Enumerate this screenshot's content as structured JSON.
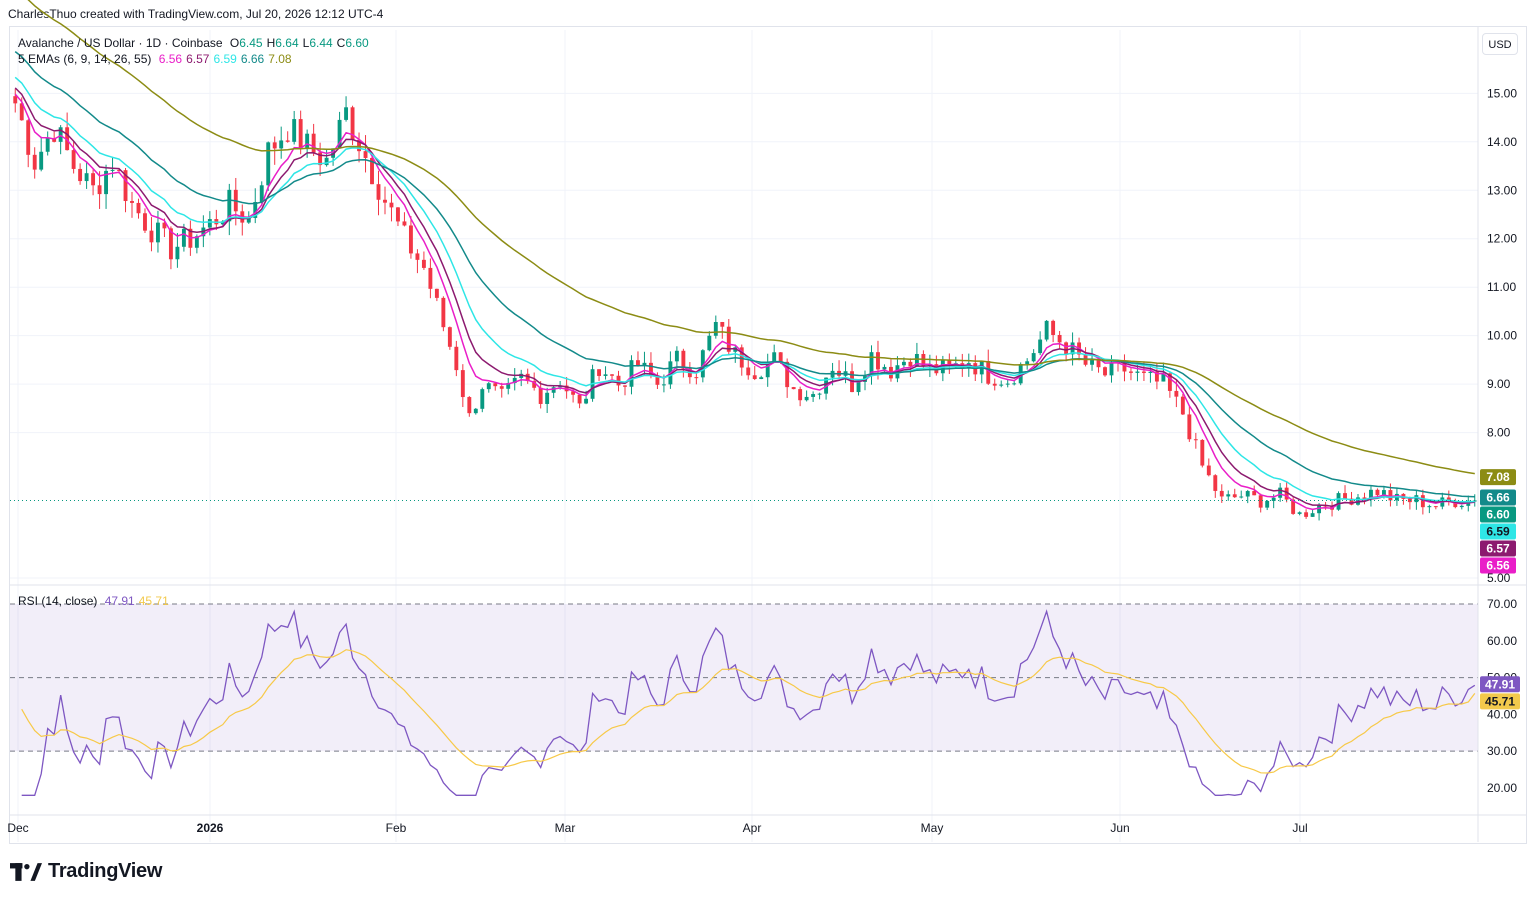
{
  "header": {
    "title": "CharlesThuo created with TradingView.com, Jul 20, 2026 12:12 UTC-4"
  },
  "legend": {
    "symbol": "Avalanche / US Dollar · 1D · Coinbase",
    "ohlc": [
      {
        "k": "O",
        "v": "6.45"
      },
      {
        "k": "H",
        "v": "6.64"
      },
      {
        "k": "L",
        "v": "6.44"
      },
      {
        "k": "C",
        "v": "6.60"
      }
    ],
    "ema_label": "5 EMAs (6, 9, 14, 26, 55)",
    "ema_values": [
      {
        "v": "6.56",
        "color": "#e91ec8"
      },
      {
        "v": "6.57",
        "color": "#8c1a6f"
      },
      {
        "v": "6.59",
        "color": "#2ee6e6"
      },
      {
        "v": "6.66",
        "color": "#138a8a"
      },
      {
        "v": "7.08",
        "color": "#8c8c14"
      }
    ],
    "rsi_label": "RSI (14, close)",
    "rsi_values": [
      {
        "v": "47.91",
        "color": "#7e57c2"
      },
      {
        "v": "45.71",
        "color": "#f2c94c"
      }
    ]
  },
  "usd_button": "USD",
  "footer": {
    "logo_text": "TradingView"
  },
  "colors": {
    "up": "#089981",
    "down": "#f23645",
    "rsi_line": "#7e57c2",
    "rsi_ma": "#f7c948"
  },
  "chart_data": {
    "type": "line",
    "title": "Avalanche / US Dollar · 1D · Coinbase",
    "x_axis_labels": [
      "Dec",
      "2026",
      "Feb",
      "Mar",
      "Apr",
      "May",
      "Jun",
      "Jul"
    ],
    "price_axis_ticks": [
      "15.00",
      "14.00",
      "13.00",
      "12.00",
      "11.00",
      "10.00",
      "9.00",
      "8.00",
      "5.00"
    ],
    "ylim_price": [
      5,
      16.1
    ],
    "last_close": 6.6,
    "price_path": [
      [
        0,
        14.8
      ],
      [
        3,
        13.6
      ],
      [
        6,
        14.3
      ],
      [
        9,
        13.5
      ],
      [
        12,
        13.0
      ],
      [
        15,
        13.6
      ],
      [
        18,
        12.7
      ],
      [
        21,
        12.2
      ],
      [
        24,
        11.8
      ],
      [
        27,
        12.0
      ],
      [
        30,
        12.3
      ],
      [
        33,
        12.7
      ],
      [
        36,
        12.4
      ],
      [
        39,
        13.8
      ],
      [
        42,
        14.3
      ],
      [
        45,
        13.9
      ],
      [
        48,
        13.6
      ],
      [
        51,
        14.6
      ],
      [
        54,
        13.7
      ],
      [
        57,
        12.8
      ],
      [
        60,
        12.0
      ],
      [
        63,
        11.4
      ],
      [
        66,
        10.2
      ],
      [
        68,
        9.4
      ],
      [
        70,
        8.3
      ],
      [
        72,
        9.0
      ],
      [
        75,
        8.7
      ],
      [
        78,
        9.1
      ],
      [
        81,
        8.8
      ],
      [
        84,
        9.1
      ],
      [
        87,
        8.5
      ],
      [
        90,
        9.4
      ],
      [
        93,
        9.0
      ],
      [
        96,
        9.4
      ],
      [
        99,
        9.0
      ],
      [
        102,
        9.5
      ],
      [
        105,
        9.3
      ],
      [
        108,
        10.2
      ],
      [
        111,
        9.6
      ],
      [
        114,
        9.3
      ],
      [
        117,
        9.5
      ],
      [
        120,
        8.9
      ],
      [
        123,
        8.8
      ],
      [
        126,
        9.4
      ],
      [
        129,
        9.0
      ],
      [
        132,
        9.6
      ],
      [
        135,
        9.3
      ],
      [
        138,
        9.6
      ],
      [
        141,
        9.3
      ],
      [
        144,
        9.3
      ],
      [
        147,
        9.5
      ],
      [
        150,
        9.2
      ],
      [
        153,
        9.1
      ],
      [
        156,
        9.5
      ],
      [
        159,
        10.1
      ],
      [
        162,
        9.8
      ],
      [
        165,
        9.4
      ],
      [
        168,
        9.2
      ],
      [
        171,
        9.3
      ],
      [
        174,
        9.1
      ],
      [
        177,
        9.0
      ],
      [
        180,
        8.4
      ],
      [
        183,
        7.3
      ],
      [
        186,
        6.6
      ],
      [
        189,
        6.7
      ],
      [
        192,
        6.6
      ],
      [
        195,
        6.7
      ],
      [
        198,
        6.3
      ],
      [
        201,
        6.5
      ],
      [
        204,
        6.6
      ],
      [
        207,
        6.7
      ],
      [
        210,
        6.8
      ],
      [
        213,
        6.6
      ],
      [
        216,
        6.6
      ],
      [
        219,
        6.5
      ],
      [
        222,
        6.6
      ],
      [
        225,
        6.6
      ]
    ],
    "ema_series": [
      {
        "name": "6.56",
        "length": 6,
        "color": "#e91ec8"
      },
      {
        "name": "6.57",
        "length": 9,
        "color": "#8c1a6f"
      },
      {
        "name": "6.59",
        "length": 14,
        "color": "#2ee6e6"
      },
      {
        "name": "6.66",
        "length": 26,
        "color": "#138a8a"
      },
      {
        "name": "7.08",
        "length": 55,
        "color": "#8c8c14"
      }
    ],
    "price_axis_tags": [
      {
        "v": "7.08",
        "price": 7.08,
        "color": "#8c8c14",
        "text": "#ffffff"
      },
      {
        "v": "6.66",
        "price": 6.66,
        "color": "#138a8a",
        "text": "#ffffff"
      },
      {
        "v": "6.60",
        "price": 6.6,
        "color": "#089981",
        "text": "#ffffff"
      },
      {
        "v": "6.59",
        "price": 6.59,
        "color": "#2ee6e6",
        "text": "#131722"
      },
      {
        "v": "6.57",
        "price": 6.57,
        "color": "#8c1a6f",
        "text": "#ffffff"
      },
      {
        "v": "6.56",
        "price": 6.56,
        "color": "#e91ec8",
        "text": "#ffffff"
      }
    ],
    "rsi": {
      "ticks": [
        "70.00",
        "60.00",
        "50.00",
        "40.00",
        "30.00",
        "20.00"
      ],
      "ylim": [
        14,
        70
      ],
      "bands": [
        30,
        50,
        70
      ],
      "rsi_value": 47.91,
      "ma_value": 45.71
    }
  }
}
